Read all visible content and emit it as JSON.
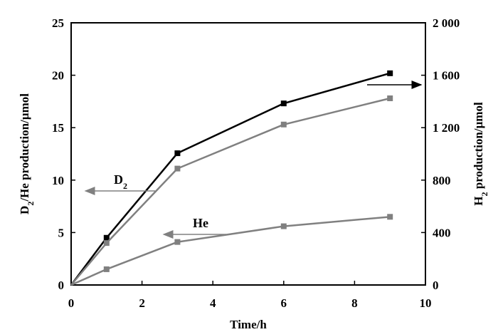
{
  "chart_data": {
    "type": "line",
    "title": "",
    "xlabel": "Time/h",
    "ylabel_left": {
      "main": "D",
      "sub": "2",
      "rest": "/He production/µmol"
    },
    "ylabel_right": {
      "main": "H",
      "sub": "2",
      "rest": " production/µmol"
    },
    "xlim": [
      0,
      10
    ],
    "ylim_left": [
      0,
      25
    ],
    "ylim_right": [
      0,
      2000
    ],
    "x_ticks": [
      0,
      2,
      4,
      6,
      8,
      10
    ],
    "x_tick_labels": [
      "0",
      "2",
      "4",
      "6",
      "8",
      "10"
    ],
    "y_left_ticks": [
      0,
      5,
      10,
      15,
      20,
      25
    ],
    "y_left_tick_labels": [
      "0",
      "5",
      "10",
      "15",
      "20",
      "25"
    ],
    "y_right_ticks": [
      0,
      400,
      800,
      1200,
      1600,
      2000
    ],
    "y_right_tick_labels": [
      "0",
      "400",
      "800",
      "1 200",
      "1 600",
      "2 000"
    ],
    "grid": false,
    "series": [
      {
        "name": "H2",
        "axis": "right",
        "color": "#000000",
        "x": [
          0,
          1,
          3,
          6,
          9
        ],
        "y": [
          0,
          360,
          1005,
          1385,
          1615
        ]
      },
      {
        "name": "D2",
        "axis": "left",
        "color": "#808080",
        "x": [
          0,
          1,
          3,
          6,
          9
        ],
        "y": [
          0,
          4.0,
          11.1,
          15.3,
          17.8
        ]
      },
      {
        "name": "He",
        "axis": "left",
        "color": "#808080",
        "x": [
          0,
          1,
          3,
          6,
          9
        ],
        "y": [
          0,
          1.5,
          4.1,
          5.6,
          6.5
        ]
      }
    ],
    "annotations": [
      {
        "label_main": "D",
        "label_sub": "2",
        "points_to": "left"
      },
      {
        "label_main": "He",
        "label_sub": "",
        "points_to": "left"
      },
      {
        "label_main": "",
        "label_sub": "",
        "points_to": "right"
      }
    ]
  }
}
